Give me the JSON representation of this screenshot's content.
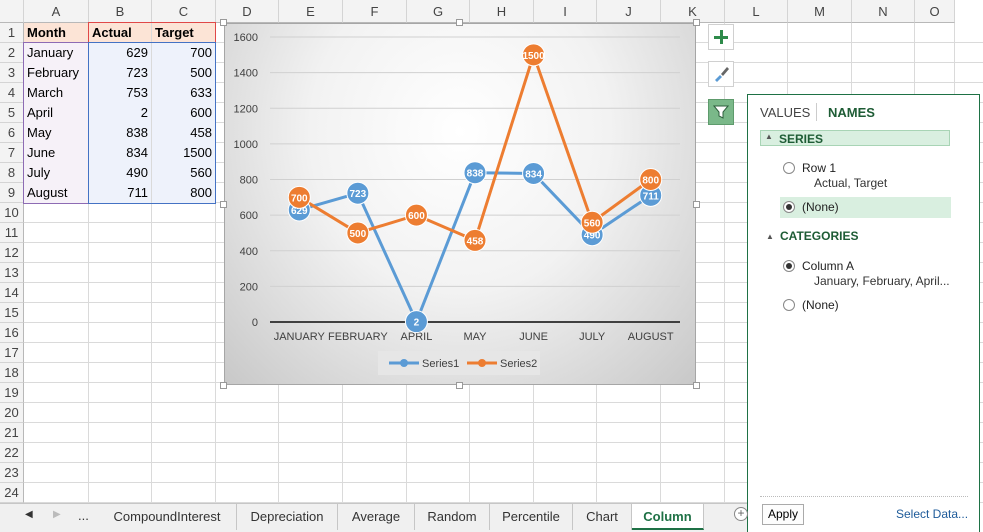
{
  "columns": [
    "A",
    "B",
    "C",
    "D",
    "E",
    "F",
    "G",
    "H",
    "I",
    "J",
    "K",
    "L",
    "M",
    "N",
    "O"
  ],
  "rows": [
    "1",
    "2",
    "3",
    "4",
    "5",
    "6",
    "7",
    "8",
    "9",
    "10",
    "11",
    "12",
    "13",
    "14",
    "15",
    "16",
    "17",
    "18",
    "19",
    "20",
    "21",
    "22",
    "23",
    "24"
  ],
  "table": {
    "headers": [
      "Month",
      "Actual",
      "Target"
    ],
    "rows": [
      [
        "January",
        "629",
        "700"
      ],
      [
        "February",
        "723",
        "500"
      ],
      [
        "March",
        "753",
        "633"
      ],
      [
        "April",
        "2",
        "600"
      ],
      [
        "May",
        "838",
        "458"
      ],
      [
        "June",
        "834",
        "1500"
      ],
      [
        "July",
        "490",
        "560"
      ],
      [
        "August",
        "711",
        "800"
      ]
    ]
  },
  "chart_data": {
    "type": "line",
    "categories": [
      "JANUARY",
      "FEBRUARY",
      "APRIL",
      "MAY",
      "JUNE",
      "JULY",
      "AUGUST"
    ],
    "series": [
      {
        "name": "Series1",
        "color": "#5b9bd5",
        "values": [
          629,
          723,
          2,
          838,
          834,
          490,
          711
        ]
      },
      {
        "name": "Series2",
        "color": "#ed7d31",
        "values": [
          700,
          500,
          600,
          458,
          1500,
          560,
          800
        ]
      }
    ],
    "ylim": [
      0,
      1600
    ],
    "yticks": [
      "0",
      "200",
      "400",
      "600",
      "800",
      "1000",
      "1200",
      "1400",
      "1600"
    ],
    "grid": true,
    "legend": "bottom",
    "data_labels": true
  },
  "side_buttons": [
    {
      "icon": "plus-icon"
    },
    {
      "icon": "paintbrush-icon"
    },
    {
      "icon": "funnel-icon"
    }
  ],
  "panel": {
    "tab_values": "VALUES",
    "tab_names": "NAMES",
    "series_header": "SERIES",
    "series_options": [
      {
        "label": "Row 1",
        "sub": "Actual, Target",
        "selected": false
      },
      {
        "label": "(None)",
        "sub": "",
        "selected": true
      }
    ],
    "categories_header": "CATEGORIES",
    "category_options": [
      {
        "label": "Column A",
        "sub": "January, February, April...",
        "selected": true
      },
      {
        "label": "(None)",
        "sub": "",
        "selected": false
      }
    ],
    "apply_label": "Apply",
    "select_data_label": "Select Data..."
  },
  "sheet_tabs": {
    "ellipsis": "...",
    "tabs": [
      "CompoundInterest",
      "Depreciation",
      "Average",
      "Random",
      "Percentile",
      "Chart",
      "Column"
    ],
    "active": "Column",
    "add": "+"
  },
  "colors": {
    "accent": "#1e7145",
    "series1": "#5b9bd5",
    "series2": "#ed7d31"
  }
}
